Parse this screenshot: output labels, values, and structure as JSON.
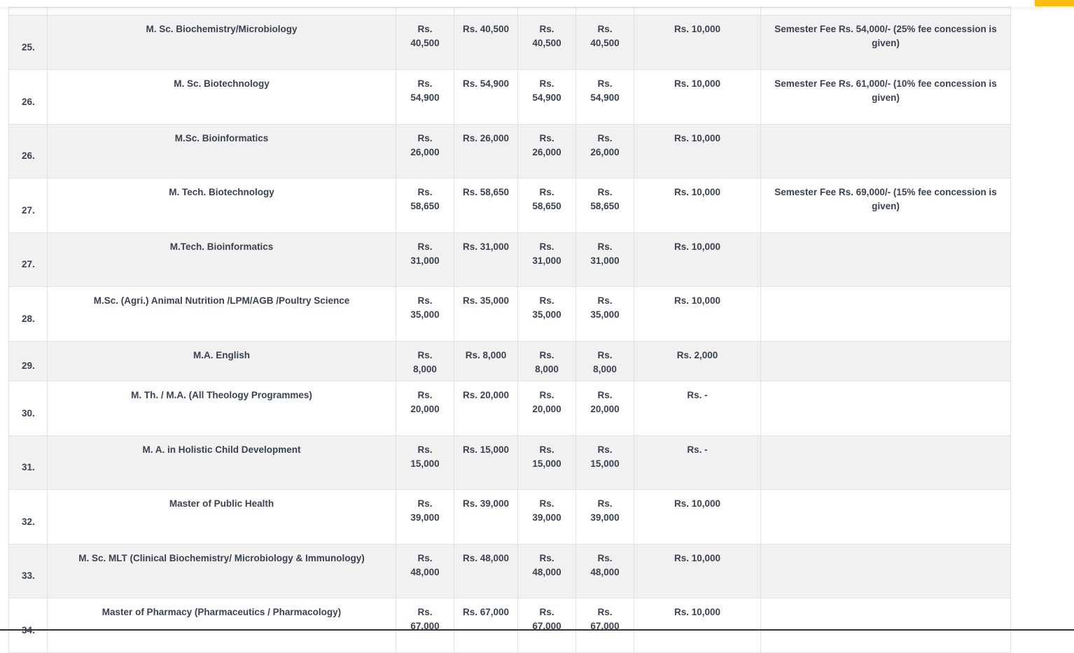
{
  "rows": [
    {
      "no": "25.",
      "course": "M. Sc. Biochemistry/Microbiology",
      "c1": "Rs. 40,500",
      "c2": "Rs. 40,500",
      "c3": "Rs. 40,500",
      "c4": "Rs. 40,500",
      "c5": "Rs. 10,000",
      "remarks": "Semester Fee Rs. 54,000/- (25% fee concession is given)"
    },
    {
      "no": "26.",
      "course": "M. Sc. Biotechnology",
      "c1": "Rs. 54,900",
      "c2": "Rs. 54,900",
      "c3": "Rs. 54,900",
      "c4": "Rs. 54,900",
      "c5": "Rs. 10,000",
      "remarks": "Semester Fee Rs. 61,000/- (10% fee concession is given)"
    },
    {
      "no": "26.",
      "course": "M.Sc. Bioinformatics",
      "c1": "Rs. 26,000",
      "c2": "Rs. 26,000",
      "c3": "Rs. 26,000",
      "c4": "Rs. 26,000",
      "c5": "Rs. 10,000",
      "remarks": ""
    },
    {
      "no": "27.",
      "course": "M. Tech. Biotechnology",
      "c1": "Rs. 58,650",
      "c2": "Rs. 58,650",
      "c3": "Rs. 58,650",
      "c4": "Rs. 58,650",
      "c5": "Rs. 10,000",
      "remarks": "Semester Fee Rs. 69,000/- (15% fee concession is given)"
    },
    {
      "no": "27.",
      "course": "M.Tech. Bioinformatics",
      "c1": "Rs. 31,000",
      "c2": "Rs. 31,000",
      "c3": "Rs. 31,000",
      "c4": "Rs. 31,000",
      "c5": "Rs. 10,000",
      "remarks": ""
    },
    {
      "no": "28.",
      "course": "M.Sc. (Agri.) Animal Nutrition /LPM/AGB /Poultry Science",
      "c1": "Rs. 35,000",
      "c2": "Rs. 35,000",
      "c3": "Rs. 35,000",
      "c4": "Rs. 35,000",
      "c5": "Rs. 10,000",
      "remarks": ""
    },
    {
      "no": "29.",
      "course": "M.A. English",
      "c1": "Rs. 8,000",
      "c2": "Rs. 8,000",
      "c3": "Rs. 8,000",
      "c4": "Rs. 8,000",
      "c5": "Rs. 2,000",
      "remarks": ""
    },
    {
      "no": "30.",
      "course": "M. Th. / M.A. (All Theology Programmes)",
      "c1": "Rs. 20,000",
      "c2": "Rs. 20,000",
      "c3": "Rs. 20,000",
      "c4": "Rs. 20,000",
      "c5": "Rs. -",
      "remarks": ""
    },
    {
      "no": "31.",
      "course": "M. A. in Holistic Child Development",
      "c1": "Rs. 15,000",
      "c2": "Rs. 15,000",
      "c3": "Rs. 15,000",
      "c4": "Rs. 15,000",
      "c5": "Rs. -",
      "remarks": ""
    },
    {
      "no": "32.",
      "course": "Master of Public Health",
      "c1": "Rs. 39,000",
      "c2": "Rs. 39,000",
      "c3": "Rs. 39,000",
      "c4": "Rs. 39,000",
      "c5": "Rs. 10,000",
      "remarks": ""
    },
    {
      "no": "33.",
      "course": "M. Sc. MLT (Clinical Biochemistry/ Microbiology & Immunology)",
      "c1": "Rs. 48,000",
      "c2": "Rs. 48,000",
      "c3": "Rs. 48,000",
      "c4": "Rs. 48,000",
      "c5": "Rs. 10,000",
      "remarks": ""
    },
    {
      "no": "34.",
      "course": "Master of Pharmacy (Pharmaceutics / Pharmacology)",
      "c1": "Rs. 67,000",
      "c2": "Rs. 67,000",
      "c3": "Rs. 67,000",
      "c4": "Rs. 67,000",
      "c5": "Rs. 10,000",
      "remarks": ""
    }
  ],
  "colors": {
    "accent": "#fdbd10",
    "row_alt": "#f1f1f1",
    "text": "#3a4150",
    "border": "#e1e1e6"
  }
}
